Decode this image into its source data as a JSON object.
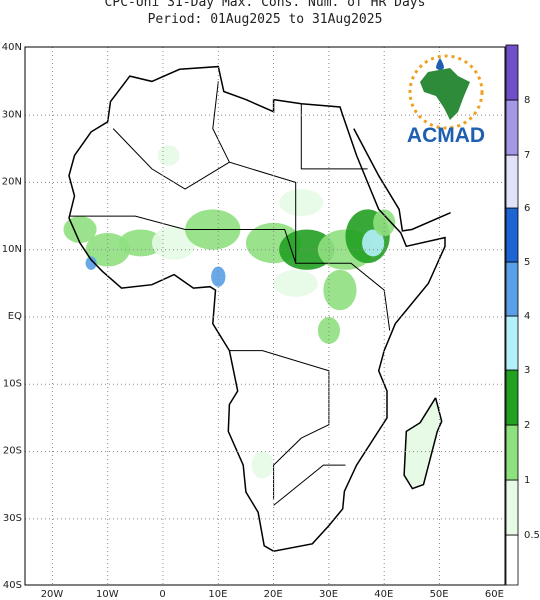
{
  "header": {
    "title_lines": [
      "CPC-Uni 31-Day Max. Cons. Num. of HR Days",
      "Period: 01Aug2025 to 31Aug2025"
    ]
  },
  "map": {
    "lat_labels": [
      "40N",
      "30N",
      "20N",
      "10N",
      "EQ",
      "10S",
      "20S",
      "30S",
      "40S"
    ],
    "lon_labels": [
      "20W",
      "10W",
      "0",
      "10E",
      "20E",
      "30E",
      "40E",
      "50E",
      "60E"
    ]
  },
  "colorbar": {
    "labels": [
      "0.5",
      "1",
      "2",
      "3",
      "4",
      "5",
      "6",
      "7",
      "8"
    ]
  },
  "logo": {
    "text": "ACMAD"
  }
}
